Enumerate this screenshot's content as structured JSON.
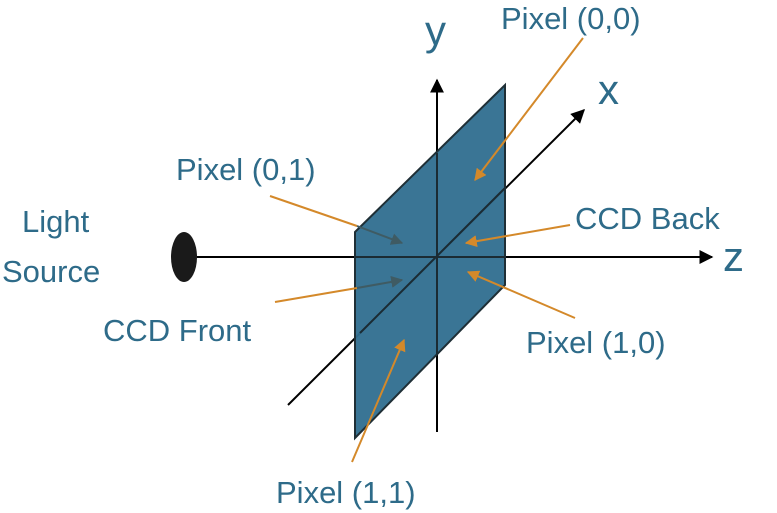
{
  "axes": {
    "x": "x",
    "y": "y",
    "z": "z"
  },
  "labels": {
    "light_source_line1": "Light",
    "light_source_line2": "Source",
    "ccd_front": "CCD Front",
    "ccd_back": "CCD Back",
    "pixel_00": "Pixel (0,0)",
    "pixel_01": "Pixel (0,1)",
    "pixel_10": "Pixel (1,0)",
    "pixel_11": "Pixel (1,1)"
  },
  "colors": {
    "ccd_fill": "#326f91",
    "label_text": "#2e6b89",
    "pointer_arrow": "#d4892a",
    "axis_line": "#000000",
    "light_source": "#1a1a1a"
  }
}
